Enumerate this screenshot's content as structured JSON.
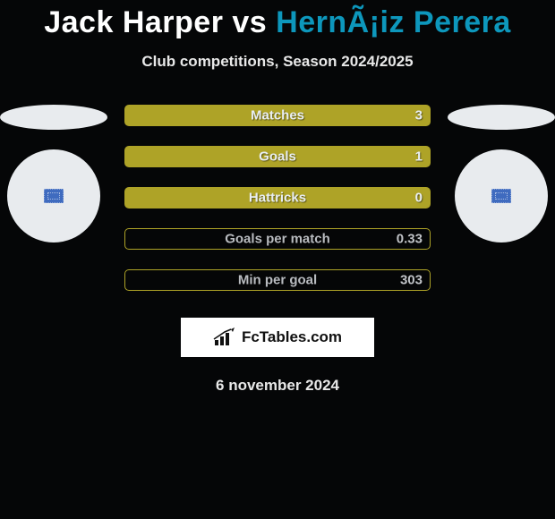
{
  "title": {
    "player1": "Jack Harper",
    "vs": "vs",
    "player2": "HernÃ¡iz Perera",
    "player1_color": "#ffffff",
    "player2_color": "#0d97bc"
  },
  "subtitle": "Club competitions, Season 2024/2025",
  "bar_style": {
    "filled_fill": "#aea327",
    "filled_border": "#aea327",
    "filled_label_color": "#e9eef2",
    "filled_value_color": "#e9eef2",
    "outline_fill": "transparent",
    "outline_border": "#aea327",
    "outline_label_color": "#b9bcc0",
    "outline_value_color": "#c0c3c7",
    "height": 24,
    "radius": 5,
    "gap": 22
  },
  "bars": [
    {
      "label": "Matches",
      "value": "3",
      "filled": true
    },
    {
      "label": "Goals",
      "value": "1",
      "filled": true
    },
    {
      "label": "Hattricks",
      "value": "0",
      "filled": true
    },
    {
      "label": "Goals per match",
      "value": "0.33",
      "filled": false
    },
    {
      "label": "Min per goal",
      "value": "303",
      "filled": false
    }
  ],
  "side_shapes": {
    "ellipse_color": "#e8ebee",
    "circle_color": "#e8ebee",
    "flag_bg": "#3f6bbf"
  },
  "logo": {
    "text": "FcTables.com"
  },
  "date": "6 november 2024",
  "background_color": "#050607"
}
